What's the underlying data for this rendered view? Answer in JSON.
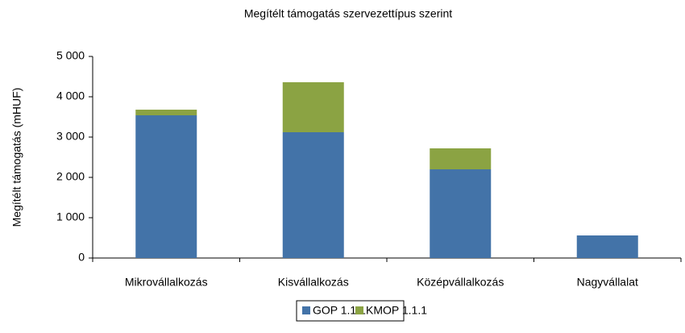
{
  "chart_data": {
    "type": "stacked_bar",
    "title": "Megítélt támogatás szervezettípus szerint",
    "y_label": "Megítélt támogatás (mHUF)",
    "categories": [
      "Mikrovállalkozás",
      "Kisvállalkozás",
      "Középvállalkozás",
      "Nagyvállalat"
    ],
    "series": [
      {
        "name": "GOP 1.1.1",
        "color": "#4373a8",
        "values": [
          3540,
          3120,
          2200,
          560
        ]
      },
      {
        "name": "KMOP 1.1.1",
        "color": "#8ba343",
        "values": [
          140,
          1240,
          520,
          0
        ]
      }
    ],
    "ylim": [
      0,
      5000
    ],
    "yticks": [
      0,
      {
        "value": 1000,
        "label": "1 000"
      },
      {
        "value": 2000,
        "label": "2 000"
      },
      {
        "value": 3000,
        "label": "3 000"
      },
      {
        "value": 4000,
        "label": "4 000"
      },
      {
        "value": 5000,
        "label": "5 000"
      }
    ],
    "legend": "bottom"
  }
}
